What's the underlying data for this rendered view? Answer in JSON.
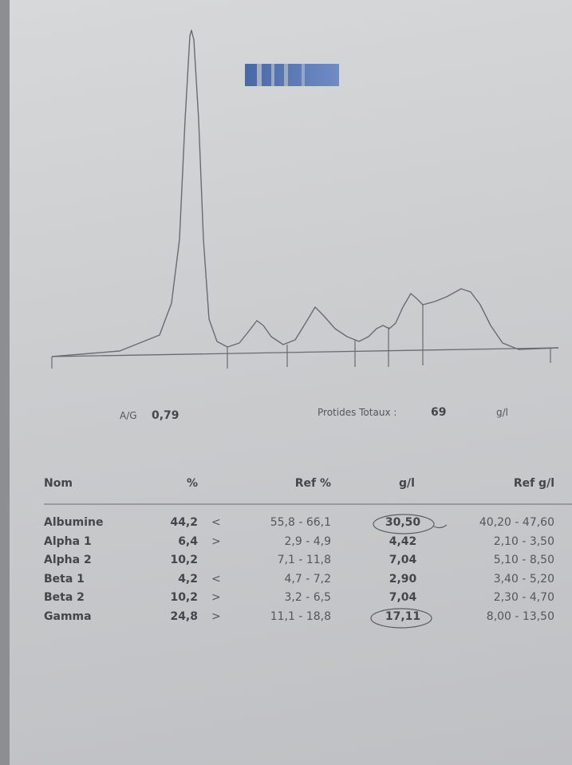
{
  "summary": {
    "ag_label": "A/G",
    "ag_value": "0,79",
    "total_label": "Protides Totaux :",
    "total_value": "69",
    "total_unit": "g/l"
  },
  "table": {
    "header": [
      "Nom",
      "%",
      "Ref %",
      "g/l",
      "Ref g/l"
    ],
    "rows": [
      {
        "name": "Albumine",
        "pct": "44,2",
        "flag": "<",
        "ref_pct": "55,8 - 66,1",
        "gl": "30,50",
        "ref_gl": "40,20 - 47,60"
      },
      {
        "name": "Alpha 1",
        "pct": "6,4",
        "flag": ">",
        "ref_pct": "2,9 - 4,9",
        "gl": "4,42",
        "ref_gl": "2,10 - 3,50"
      },
      {
        "name": "Alpha 2",
        "pct": "10,2",
        "ref_pct": "7,1 - 11,8",
        "gl": "7,04",
        "ref_gl": "5,10 - 8,50"
      },
      {
        "name": "Beta 1",
        "pct": "4,2",
        "flag": "<",
        "ref_pct": "4,7 - 7,2",
        "gl": "2,90",
        "ref_gl": "3,40 - 5,20"
      },
      {
        "name": "Beta 2",
        "pct": "10,2",
        "flag": ">",
        "ref_pct": "3,2 - 6,5",
        "gl": "7,04",
        "ref_gl": "2,30 - 4,70"
      },
      {
        "name": "Gamma",
        "pct": "24,8",
        "flag": ">",
        "ref_pct": "11,1 - 18,8",
        "gl": "17,11",
        "ref_gl": "8,00 - 13,50"
      }
    ]
  }
}
